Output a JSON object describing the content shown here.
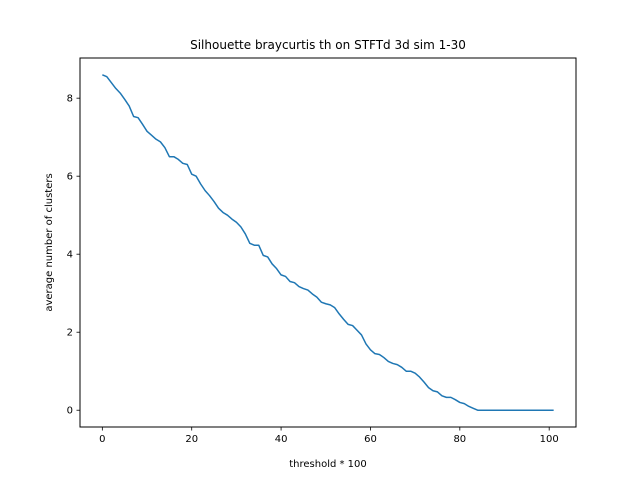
{
  "chart_data": {
    "type": "line",
    "title": "Silhouette braycurtis th on STFTd 3d sim 1-30",
    "xlabel": "threshold * 100",
    "ylabel": "average number of clusters",
    "xlim": [
      -5,
      106
    ],
    "ylim": [
      -0.43,
      9.03
    ],
    "xticks": [
      0,
      20,
      40,
      60,
      80,
      100
    ],
    "yticks": [
      0,
      2,
      4,
      6,
      8
    ],
    "grid": false,
    "line_color": "#1f77b4",
    "series": [
      {
        "x": [
          0,
          1,
          2,
          3,
          4,
          5,
          6,
          7,
          8,
          9,
          10,
          11,
          12,
          13,
          14,
          15,
          16,
          17,
          18,
          19,
          20,
          21,
          22,
          23,
          24,
          25,
          26,
          27,
          28,
          29,
          30,
          31,
          32,
          33,
          34,
          35,
          36,
          37,
          38,
          39,
          40,
          41,
          42,
          43,
          44,
          45,
          46,
          47,
          48,
          49,
          50,
          51,
          52,
          53,
          54,
          55,
          56,
          57,
          58,
          59,
          60,
          61,
          62,
          63,
          64,
          65,
          66,
          67,
          68,
          69,
          70,
          71,
          72,
          73,
          74,
          75,
          76,
          77,
          78,
          79,
          80,
          81,
          82,
          83,
          84,
          85,
          86,
          87,
          88,
          89,
          90,
          91,
          92,
          93,
          94,
          95,
          96,
          97,
          98,
          99,
          100,
          101
        ],
        "y": [
          8.6,
          8.55,
          8.4,
          8.25,
          8.13,
          7.97,
          7.8,
          7.53,
          7.5,
          7.33,
          7.15,
          7.05,
          6.95,
          6.88,
          6.73,
          6.5,
          6.5,
          6.43,
          6.33,
          6.3,
          6.05,
          6.0,
          5.8,
          5.63,
          5.5,
          5.35,
          5.18,
          5.07,
          5.0,
          4.9,
          4.82,
          4.7,
          4.52,
          4.28,
          4.23,
          4.23,
          3.97,
          3.93,
          3.75,
          3.63,
          3.47,
          3.43,
          3.3,
          3.27,
          3.17,
          3.12,
          3.08,
          2.98,
          2.9,
          2.77,
          2.73,
          2.7,
          2.63,
          2.47,
          2.33,
          2.2,
          2.17,
          2.05,
          1.93,
          1.7,
          1.55,
          1.45,
          1.43,
          1.35,
          1.25,
          1.2,
          1.17,
          1.1,
          1.0,
          1.0,
          0.95,
          0.85,
          0.72,
          0.58,
          0.5,
          0.47,
          0.37,
          0.33,
          0.33,
          0.27,
          0.2,
          0.17,
          0.1,
          0.05,
          0.0,
          0.0,
          0.0,
          0.0,
          0.0,
          0.0,
          0.0,
          0.0,
          0.0,
          0.0,
          0.0,
          0.0,
          0.0,
          0.0,
          0.0,
          0.0,
          0.0,
          0.0
        ]
      }
    ]
  }
}
